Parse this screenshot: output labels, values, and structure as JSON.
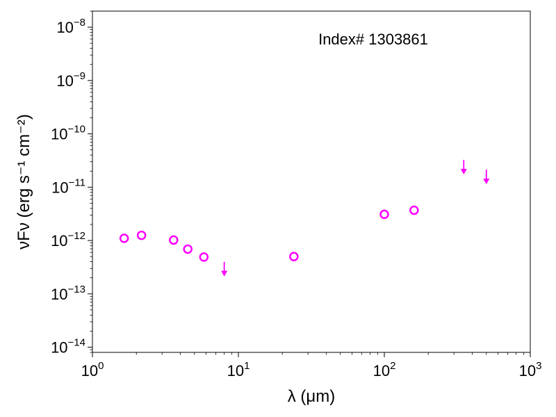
{
  "chart_data": {
    "type": "scatter",
    "x_scale": "log",
    "y_scale": "log",
    "xlim": [
      1,
      1000
    ],
    "ylim": [
      8e-15,
      2e-08
    ],
    "xlabel": "λ (μm)",
    "ylabel": "νFν (erg s⁻¹ cm⁻²)",
    "annotation": "Index# 1303861",
    "marker_color": "#ff00ff",
    "x_ticks": [
      {
        "value": 1,
        "base": "10",
        "exp": "0"
      },
      {
        "value": 10,
        "base": "10",
        "exp": "1"
      },
      {
        "value": 100,
        "base": "10",
        "exp": "2"
      },
      {
        "value": 1000,
        "base": "10",
        "exp": "3"
      }
    ],
    "y_ticks": [
      {
        "value": 1e-14,
        "base": "10",
        "exp": "−14"
      },
      {
        "value": 1e-13,
        "base": "10",
        "exp": "−13"
      },
      {
        "value": 1e-12,
        "base": "10",
        "exp": "−12"
      },
      {
        "value": 1e-11,
        "base": "10",
        "exp": "−11"
      },
      {
        "value": 1e-10,
        "base": "10",
        "exp": "−10"
      },
      {
        "value": 1e-09,
        "base": "10",
        "exp": "−9"
      },
      {
        "value": 1e-08,
        "base": "10",
        "exp": "−8"
      }
    ],
    "series": [
      {
        "kind": "detections",
        "points": [
          {
            "x": 1.65,
            "y": 1.1e-12
          },
          {
            "x": 2.17,
            "y": 1.25e-12
          },
          {
            "x": 3.6,
            "y": 1.02e-12
          },
          {
            "x": 4.5,
            "y": 6.9e-13
          },
          {
            "x": 5.8,
            "y": 4.9e-13
          },
          {
            "x": 24,
            "y": 5e-13
          },
          {
            "x": 100,
            "y": 3.1e-12
          },
          {
            "x": 160,
            "y": 3.7e-12
          }
        ]
      },
      {
        "kind": "upper_limits",
        "points": [
          {
            "x": 8.0,
            "y": 2.7e-13
          },
          {
            "x": 350,
            "y": 2.2e-11
          },
          {
            "x": 500,
            "y": 1.45e-11
          }
        ]
      }
    ]
  }
}
